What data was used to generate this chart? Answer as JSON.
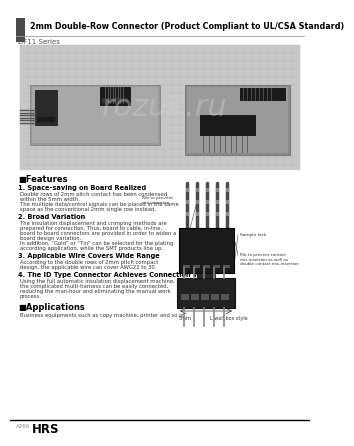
{
  "title": "2mm Double-Row Connector (Product Compliant to UL/CSA Standard)",
  "series": "DF11 Series",
  "bg_color": "#ffffff",
  "header_bar_color": "#4a4a4a",
  "title_color": "#000000",
  "features_title": "■Features",
  "feature1_title": "1. Space-saving on Board Realized",
  "feature1_lines": [
    "Double rows of 2mm pitch contact has been condensed",
    "within the 5mm width.",
    "The multiple data/control signals can be placed in the same",
    "space as the conventional 2mm single row instead."
  ],
  "feature2_title": "2. Broad Variation",
  "feature2_lines": [
    "The insulation displacement and crimping methods are",
    "prepared for connection. Thus, board to cable, in-line,",
    "board to board connectors are provided in order to widen a",
    "board design variation.",
    "In addition, “Gold” or “Tin” can be selected for the plating",
    "according application, while the SMT products line up."
  ],
  "feature3_title": "3. Applicable Wire Covers Wide Range",
  "feature3_lines": [
    "According to the double rows of 2mm pitch compact",
    "design, the applicable wire can cover AWG22 to 30."
  ],
  "feature4_title": "4. The ID Type Connector Achieves Connection Work.",
  "feature4_lines": [
    "Using the full automatic insulation displacement machine,",
    "the complicated multi-harness can be easily connected,",
    "reducing the man-hour and eliminating the manual work",
    "process."
  ],
  "applications_title": "■Applications",
  "applications_text": "Business equipments such as copy machine, printer and so on.",
  "footer_left": "A266",
  "footer_logo": "HRS"
}
